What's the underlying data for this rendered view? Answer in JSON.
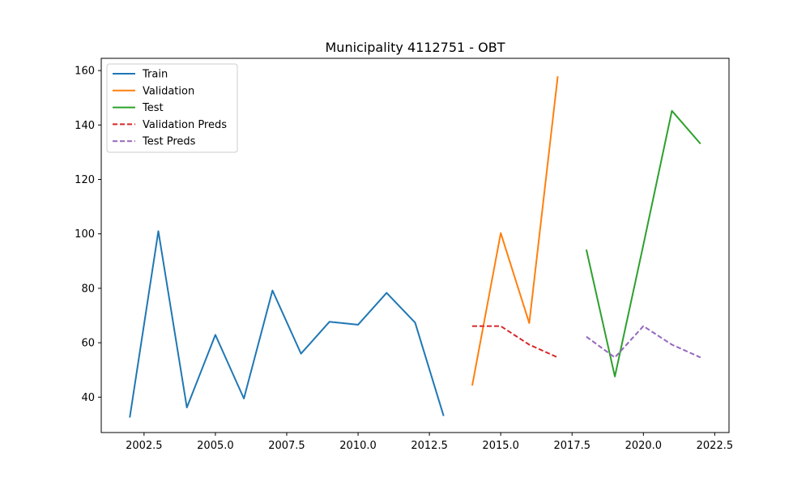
{
  "chart_data": {
    "type": "line",
    "title": "Municipality 4112751 - OBT",
    "xlabel": "",
    "ylabel": "",
    "xlim": [
      2001.0,
      2023.0
    ],
    "ylim": [
      27.0,
      164.5
    ],
    "x_ticks": [
      2002.5,
      2005.0,
      2007.5,
      2010.0,
      2012.5,
      2015.0,
      2017.5,
      2020.0,
      2022.5
    ],
    "x_tick_labels": [
      "2002.5",
      "2005.0",
      "2007.5",
      "2010.0",
      "2012.5",
      "2015.0",
      "2017.5",
      "2020.0",
      "2022.5"
    ],
    "y_ticks": [
      40,
      60,
      80,
      100,
      120,
      140,
      160
    ],
    "y_tick_labels": [
      "40",
      "60",
      "80",
      "100",
      "120",
      "140",
      "160"
    ],
    "grid": false,
    "legend_position": "top-left",
    "series": [
      {
        "name": "Train",
        "color": "#1f77b4",
        "style": "solid",
        "x": [
          2002,
          2003,
          2004,
          2005,
          2006,
          2007,
          2008,
          2009,
          2010,
          2011,
          2012,
          2013
        ],
        "y": [
          32.5,
          101.0,
          36.2,
          62.9,
          39.5,
          79.2,
          56.0,
          67.7,
          66.6,
          78.3,
          67.4,
          33.1
        ]
      },
      {
        "name": "Validation",
        "color": "#ff7f0e",
        "style": "solid",
        "x": [
          2014,
          2015,
          2016,
          2017
        ],
        "y": [
          44.3,
          100.3,
          67.2,
          157.9
        ]
      },
      {
        "name": "Test",
        "color": "#2ca02c",
        "style": "solid",
        "x": [
          2018,
          2019,
          2020,
          2021,
          2022
        ],
        "y": [
          94.2,
          47.6,
          96.0,
          145.2,
          133.1
        ]
      },
      {
        "name": "Validation Preds",
        "color": "#d62728",
        "style": "dashed",
        "x": [
          2014,
          2015,
          2016,
          2017
        ],
        "y": [
          66.1,
          66.1,
          59.3,
          54.6
        ]
      },
      {
        "name": "Test Preds",
        "color": "#9467bd",
        "style": "dashed",
        "x": [
          2018,
          2019,
          2020,
          2021,
          2022
        ],
        "y": [
          62.2,
          54.6,
          66.1,
          59.3,
          54.6
        ]
      }
    ]
  }
}
